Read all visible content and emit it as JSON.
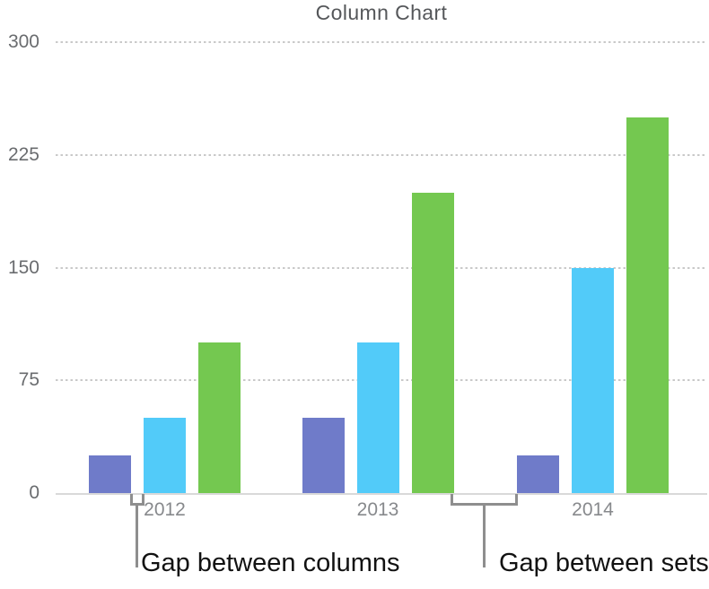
{
  "figure": {
    "title": "Column Chart",
    "annotations": {
      "gap_columns": "Gap between columns",
      "gap_sets": "Gap between sets"
    }
  },
  "chart_data": {
    "type": "bar",
    "title": "Column Chart",
    "categories": [
      "2012",
      "2013",
      "2014"
    ],
    "series": [
      {
        "name": "purple-series",
        "color": "#6F7BC9",
        "values": [
          25,
          50,
          25
        ]
      },
      {
        "name": "blue-series",
        "color": "#52CBF9",
        "values": [
          50,
          100,
          150
        ]
      },
      {
        "name": "green-series",
        "color": "#74C850",
        "values": [
          100,
          200,
          250
        ]
      }
    ],
    "ylim": [
      0,
      300
    ],
    "yticks": [
      0,
      75,
      150,
      225,
      300
    ],
    "xlabel": "",
    "ylabel": "",
    "legend": "none",
    "grid": "horizontal-dotted",
    "colors": {
      "axis_line": "#D9D9D9",
      "gridline": "#C9C9C9",
      "tick_label": "#6A6C6F",
      "category_label": "#87898C",
      "title": "#55575A",
      "annotation_line": "#8E8E8E",
      "annotation_text": "#121212"
    },
    "annotations": [
      {
        "text": "Gap between columns",
        "points_to": "space between bars within the 2012 set"
      },
      {
        "text": "Gap between sets",
        "points_to": "space between the 2013 and 2014 sets"
      }
    ]
  }
}
